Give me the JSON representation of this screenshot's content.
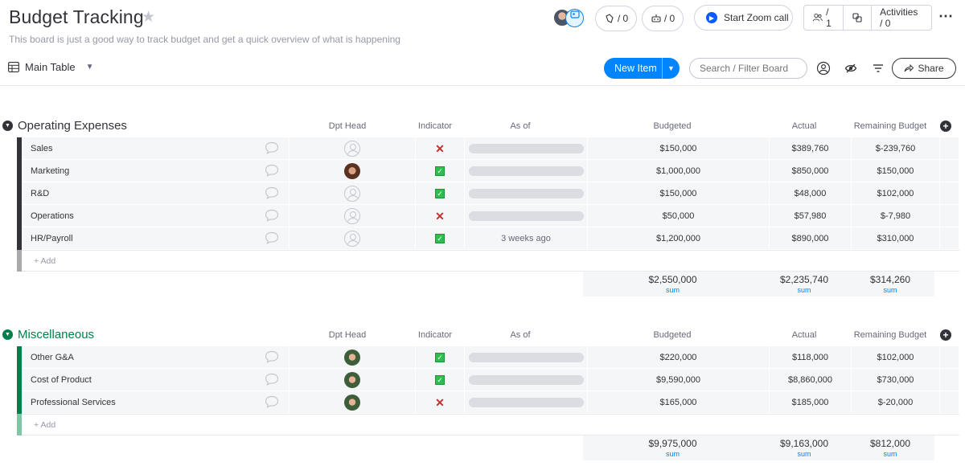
{
  "board": {
    "title": "Budget Tracking",
    "description": "This board is just a good way to track budget and get a quick overview of what is happening"
  },
  "header": {
    "updates_count": "/ 0",
    "integrations_count": "/ 0",
    "zoom_label": "Start Zoom call",
    "members_count": "/ 1",
    "activities_label": "Activities / 0"
  },
  "toolbar": {
    "view_label": "Main Table",
    "new_item_label": "New Item",
    "search_placeholder": "Search / Filter Board",
    "share_label": "Share"
  },
  "columns": {
    "dpt_head": "Dpt Head",
    "indicator": "Indicator",
    "as_of": "As of",
    "budgeted": "Budgeted",
    "actual": "Actual",
    "remaining": "Remaining Budget"
  },
  "groups": [
    {
      "title": "Operating Expenses",
      "color": "#323338",
      "add_label": "+ Add",
      "rows": [
        {
          "name": "Sales",
          "head": "empty",
          "indicator": "cross",
          "as_of": "",
          "budgeted": "$150,000",
          "actual": "$389,760",
          "remaining": "$-239,760"
        },
        {
          "name": "Marketing",
          "head": "photo-a",
          "indicator": "check",
          "as_of": "",
          "budgeted": "$1,000,000",
          "actual": "$850,000",
          "remaining": "$150,000"
        },
        {
          "name": "R&D",
          "head": "empty",
          "indicator": "check",
          "as_of": "",
          "budgeted": "$150,000",
          "actual": "$48,000",
          "remaining": "$102,000"
        },
        {
          "name": "Operations",
          "head": "empty",
          "indicator": "cross",
          "as_of": "",
          "budgeted": "$50,000",
          "actual": "$57,980",
          "remaining": "$-7,980"
        },
        {
          "name": "HR/Payroll",
          "head": "empty",
          "indicator": "check",
          "as_of": "3 weeks ago",
          "budgeted": "$1,200,000",
          "actual": "$890,000",
          "remaining": "$310,000"
        }
      ],
      "sums": {
        "budgeted": "$2,550,000",
        "actual": "$2,235,740",
        "remaining": "$314,260",
        "label": "sum"
      }
    },
    {
      "title": "Miscellaneous",
      "color": "#037f4c",
      "add_label": "+ Add",
      "rows": [
        {
          "name": "Other G&A",
          "head": "photo-b",
          "indicator": "check",
          "as_of": "",
          "budgeted": "$220,000",
          "actual": "$118,000",
          "remaining": "$102,000"
        },
        {
          "name": "Cost of Product",
          "head": "photo-b",
          "indicator": "check",
          "as_of": "",
          "budgeted": "$9,590,000",
          "actual": "$8,860,000",
          "remaining": "$730,000"
        },
        {
          "name": "Professional Services",
          "head": "photo-b",
          "indicator": "cross",
          "as_of": "",
          "budgeted": "$165,000",
          "actual": "$185,000",
          "remaining": "$-20,000"
        }
      ],
      "sums": {
        "budgeted": "$9,975,000",
        "actual": "$9,163,000",
        "remaining": "$812,000",
        "label": "sum"
      }
    }
  ]
}
